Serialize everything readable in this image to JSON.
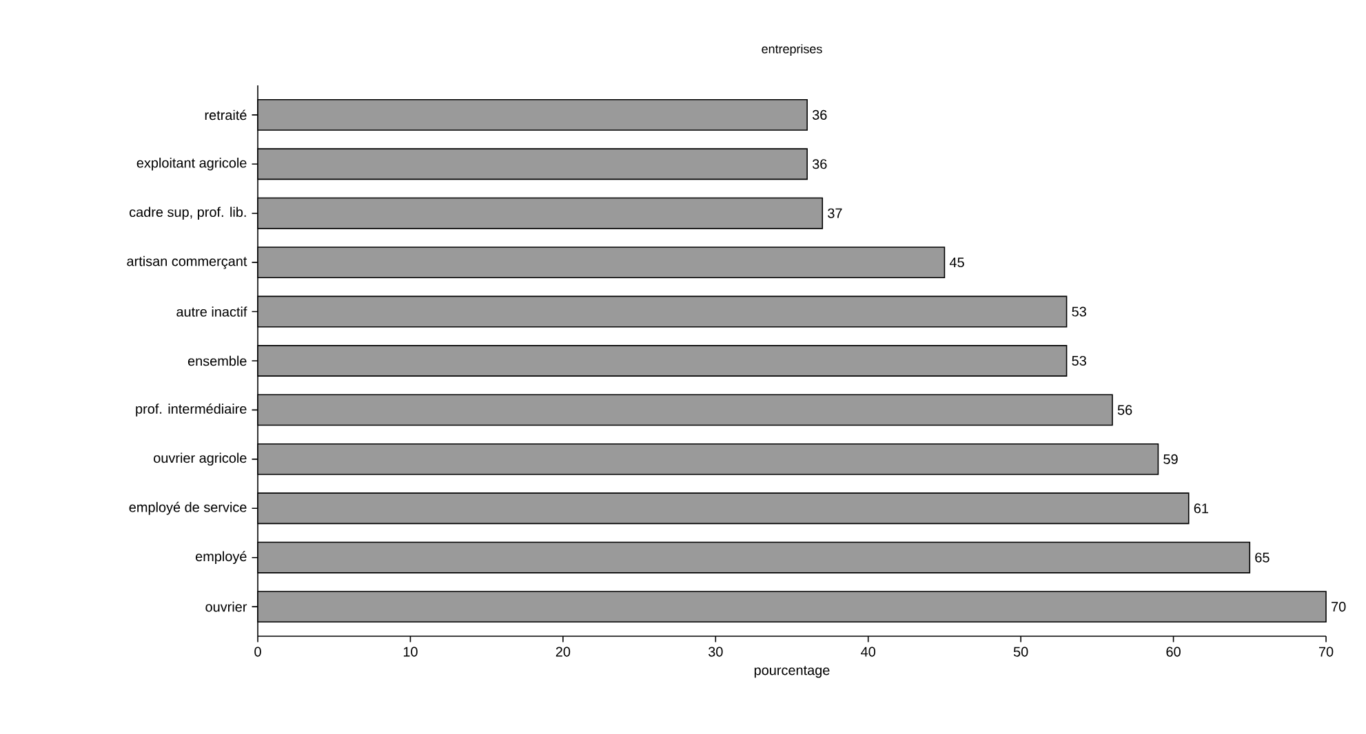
{
  "chart_data": {
    "type": "bar",
    "orientation": "horizontal",
    "title": "entreprises",
    "xlabel": "pourcentage",
    "categories": [
      "retraité",
      "exploitant agricole",
      "cadre sup, prof. lib.",
      "artisan commerçant",
      "autre inactif",
      "ensemble",
      "prof. intermédiaire",
      "ouvrier agricole",
      "employé de service",
      "employé",
      "ouvrier"
    ],
    "values": [
      36,
      36,
      37,
      45,
      53,
      53,
      56,
      59,
      61,
      65,
      70
    ],
    "color": "#9a9a9a",
    "data_labels": true,
    "xlim": [
      0,
      70
    ],
    "xticks": [
      0,
      10,
      20,
      30,
      40,
      50,
      60,
      70
    ]
  }
}
